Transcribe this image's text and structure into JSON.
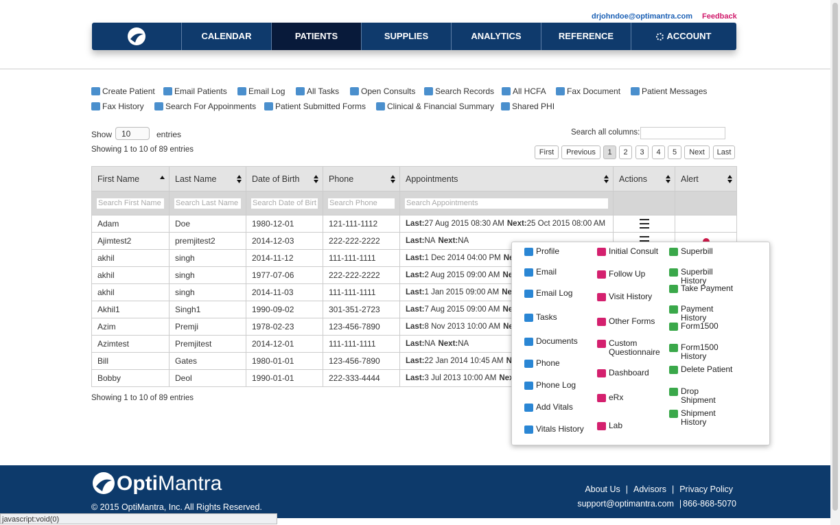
{
  "header": {
    "user_email": "drjohndoe@optimantra.com",
    "feedback": "Feedback"
  },
  "nav": {
    "items": [
      "CALENDAR",
      "PATIENTS",
      "SUPPLIES",
      "ANALYTICS",
      "REFERENCE",
      "ACCOUNT"
    ],
    "active": 1
  },
  "toolbar": {
    "rows": [
      [
        "Create Patient",
        "Email Patients",
        "Email Log",
        "All Tasks",
        "Open Consults",
        "Search Records",
        "All HCFA",
        "Fax Document",
        "Patient Messages"
      ],
      [
        "Fax History",
        "Search For Appoinments",
        "Patient Submitted Forms",
        "Clinical & Financial Summary",
        "Shared PHI"
      ]
    ]
  },
  "table_controls": {
    "show": "Show",
    "page_length": "10",
    "entries": "entries",
    "search_label": "Search all columns:",
    "info": "Showing 1 to 10 of 89 entries"
  },
  "pagination": {
    "buttons": [
      "First",
      "Previous",
      "1",
      "2",
      "3",
      "4",
      "5",
      "Next",
      "Last"
    ],
    "active": 2
  },
  "table": {
    "columns": [
      "First Name",
      "Last Name",
      "Date of Birth",
      "Phone",
      "Appointments",
      "Actions",
      "Alert"
    ],
    "filter_placeholders": [
      "Search First Name",
      "Search Last Name",
      "Search Date of Birt",
      "Search Phone",
      "Search Appointments"
    ],
    "appointment_labels": {
      "last": "Last:",
      "next": "Next:"
    },
    "rows": [
      [
        "Adam",
        "Doe",
        "1980-12-01",
        "121-111-1112",
        {
          "last": "27 Aug 2015 08:30 AM",
          "next": "25 Oct 2015 08:00 AM"
        }
      ],
      [
        "Ajimtest2",
        "premjitest2",
        "2014-12-03",
        "222-222-2222",
        {
          "last": "NA",
          "next": "NA"
        }
      ],
      [
        "akhil",
        "singh",
        "2014-11-12",
        "111-111-1111",
        {
          "last": "1 Dec 2014 04:00 PM",
          "next": null
        }
      ],
      [
        "akhil",
        "singh",
        "1977-07-06",
        "222-222-2222",
        {
          "last": "2 Aug 2015 09:00 AM",
          "next": null
        }
      ],
      [
        "akhil",
        "singh",
        "2014-11-03",
        "111-111-1111",
        {
          "last": "1 Jan 2015 09:00 AM",
          "next": null
        }
      ],
      [
        "Akhil1",
        "Singh1",
        "1990-09-02",
        "301-351-2723",
        {
          "last": "7 Aug 2015 09:00 AM",
          "next": null
        }
      ],
      [
        "Azim",
        "Premji",
        "1978-02-23",
        "123-456-7890",
        {
          "last": "8 Nov 2013 10:00 AM",
          "next": null
        }
      ],
      [
        "Azimtest",
        "Premjitest",
        "2014-12-01",
        "111-111-1111",
        {
          "last": "NA",
          "next": "NA"
        }
      ],
      [
        "Bill",
        "Gates",
        "1980-01-01",
        "123-456-7890",
        {
          "last": "22 Jan 2014 10:45 AM",
          "next": null
        }
      ],
      [
        "Bobby",
        "Deol",
        "1990-01-01",
        "222-333-4444",
        {
          "last": "3 Jul 2013 10:00 AM",
          "next": null
        }
      ]
    ],
    "alert_rows": [
      1
    ]
  },
  "popup_menu": {
    "columns": [
      [
        "Profile",
        "Email",
        "Email Log",
        "Tasks",
        "Documents",
        "Phone",
        "Phone Log",
        "Add Vitals",
        "Vitals History"
      ],
      [
        "Initial Consult",
        "Follow Up",
        "Visit History",
        "Other Forms",
        "Custom Questionnaire",
        "Dashboard",
        "eRx",
        "Lab"
      ],
      [
        "Superbill",
        "Superbill History",
        "Take Payment",
        "Payment History",
        "Form1500",
        "Form1500 History",
        "Delete Patient",
        "Drop Shipment",
        "Shipment History"
      ]
    ]
  },
  "footer": {
    "brand_opti": "Opti",
    "brand_mantra": "Mantra",
    "copyright": "© 2015 OptiMantra, Inc. All Rights Reserved.",
    "links": [
      "About Us",
      "Advisors",
      "Privacy Policy"
    ],
    "separator": "|",
    "email": "support@optimantra.com",
    "phone": "866-868-5070"
  },
  "status_bar": "javascript:void(0)"
}
